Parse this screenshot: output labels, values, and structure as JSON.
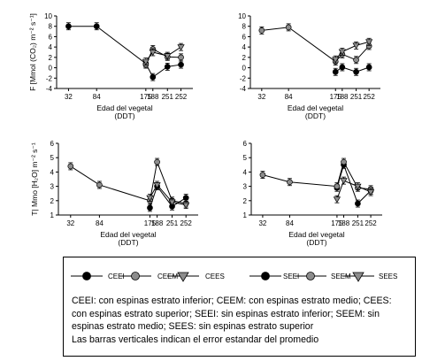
{
  "chart_data": [
    {
      "type": "line",
      "ylabel": "F [Mmol (CO₂) m⁻² s⁻¹]",
      "xlabel": "Edad del vegetal",
      "xlabel2": "(DDT)",
      "categories": [
        "32",
        "84",
        "175",
        "188",
        "251",
        "252"
      ],
      "ylim": [
        -4,
        10
      ],
      "yticks": [
        "-4",
        "-2",
        "0",
        "2",
        "4",
        "6",
        "8",
        "10"
      ],
      "series": [
        {
          "name": "CEEI",
          "x": [
            32,
            84,
            175,
            188,
            215,
            240
          ],
          "values": [
            8,
            8,
            0.8,
            -1.8,
            0.2,
            0.6
          ]
        },
        {
          "name": "CEEM",
          "x": [
            175,
            188,
            215,
            240
          ],
          "values": [
            0.6,
            3.6,
            2.1,
            2.0
          ]
        },
        {
          "name": "CEES",
          "x": [
            175,
            188,
            215,
            240
          ],
          "values": [
            1.2,
            3.0,
            2.3,
            4.0
          ]
        }
      ]
    },
    {
      "type": "line",
      "ylabel": "",
      "xlabel": "Edad del vegetal",
      "xlabel2": "(DDT)",
      "categories": [
        "32",
        "84",
        "175",
        "188",
        "251",
        "252"
      ],
      "ylim": [
        -4,
        10
      ],
      "yticks": [
        "-4",
        "-2",
        "0",
        "2",
        "4",
        "6",
        "8",
        "10"
      ],
      "series": [
        {
          "name": "SEEI",
          "x": [
            175,
            188,
            215,
            240
          ],
          "values": [
            -0.8,
            0.1,
            -0.8,
            0.1
          ]
        },
        {
          "name": "SEEM",
          "x": [
            32,
            84,
            175,
            188,
            215,
            240
          ],
          "values": [
            7.2,
            7.8,
            1.2,
            2.6,
            1.5,
            4.2
          ]
        },
        {
          "name": "SEES",
          "x": [
            175,
            188,
            215,
            240
          ],
          "values": [
            1.6,
            3.1,
            4.3,
            5.0
          ]
        }
      ]
    },
    {
      "type": "line",
      "ylabel": "T| Mmo [H₂O] m⁻² s⁻¹",
      "xlabel": "Edad del vegetal",
      "xlabel2": "(DDT)",
      "categories": [
        "32",
        "84",
        "175",
        "188",
        "251",
        "252"
      ],
      "ylim": [
        1,
        6
      ],
      "yticks": [
        "1",
        "2",
        "3",
        "4",
        "5",
        "6"
      ],
      "series": [
        {
          "name": "CEEI",
          "x": [
            175,
            188,
            215,
            240
          ],
          "values": [
            1.5,
            3.0,
            1.6,
            2.2
          ]
        },
        {
          "name": "CEEM",
          "x": [
            32,
            84,
            175,
            188,
            215,
            240
          ],
          "values": [
            4.4,
            3.1,
            2.0,
            4.7,
            2.0,
            1.8
          ]
        },
        {
          "name": "CEES",
          "x": [
            175,
            188,
            215,
            240
          ],
          "values": [
            2.2,
            3.1,
            1.9,
            1.7
          ]
        }
      ]
    },
    {
      "type": "line",
      "ylabel": "",
      "xlabel": "Edad del vegetal",
      "xlabel2": "(DDT)",
      "categories": [
        "32",
        "84",
        "175",
        "188",
        "251",
        "252"
      ],
      "ylim": [
        1,
        6
      ],
      "yticks": [
        "1",
        "2",
        "3",
        "4",
        "5",
        "6"
      ],
      "series": [
        {
          "name": "SEEI",
          "x": [
            175,
            188,
            215,
            240
          ],
          "values": [
            2.9,
            4.5,
            1.8,
            2.7
          ]
        },
        {
          "name": "SEEM",
          "x": [
            32,
            84,
            175,
            188,
            215,
            240
          ],
          "values": [
            3.8,
            3.3,
            3.0,
            4.7,
            2.9,
            2.8
          ]
        },
        {
          "name": "SEES",
          "x": [
            175,
            188,
            215,
            240
          ],
          "values": [
            2.1,
            3.4,
            3.0,
            2.6
          ]
        }
      ]
    }
  ],
  "legend": {
    "items": [
      {
        "label": "CEEI",
        "marker": "circle",
        "fill": "#000000"
      },
      {
        "label": "CEEM",
        "marker": "circle",
        "fill": "#8c8c8c"
      },
      {
        "label": "CEES",
        "marker": "triangle",
        "fill": "#8c8c8c"
      },
      {
        "label": "SEEI",
        "marker": "circle",
        "fill": "#000000"
      },
      {
        "label": "SEEM",
        "marker": "circle",
        "fill": "#8c8c8c"
      },
      {
        "label": "SEES",
        "marker": "triangle",
        "fill": "#8c8c8c"
      }
    ],
    "caption_lines": [
      "CEEI: con espinas estrato inferior; CEEM: con espinas estrato medio; CEES:",
      "con espinas estrato superior; SEEI: sin espinas estrato inferior; SEEM: sin",
      "espinas estrato medio; SEES: sin espinas estrato superior",
      "Las barras verticales indican el error estandar del promedio"
    ]
  }
}
